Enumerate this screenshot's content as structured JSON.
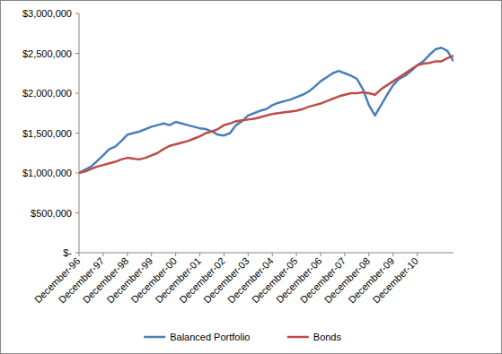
{
  "chart_data": {
    "type": "line",
    "categories": [
      "December-96",
      null,
      null,
      null,
      "December-97",
      null,
      null,
      null,
      "December-98",
      null,
      null,
      null,
      "December-99",
      null,
      null,
      null,
      "December-00",
      null,
      null,
      null,
      "December-01",
      null,
      null,
      null,
      "December-02",
      null,
      null,
      null,
      "December-03",
      null,
      null,
      null,
      "December-04",
      null,
      null,
      null,
      "December-05",
      null,
      null,
      null,
      "December-06",
      null,
      null,
      null,
      "December-07",
      null,
      null,
      null,
      "December-08",
      null,
      null,
      null,
      "December-09",
      null,
      null,
      null,
      "December-10",
      null,
      null,
      null,
      null,
      null,
      null
    ],
    "series": [
      {
        "name": "Balanced Portfolio",
        "color": "#4a7ebb",
        "values": [
          1000000,
          1040000,
          1080000,
          1150000,
          1220000,
          1300000,
          1330000,
          1400000,
          1480000,
          1500000,
          1520000,
          1550000,
          1580000,
          1600000,
          1620000,
          1600000,
          1640000,
          1620000,
          1600000,
          1580000,
          1560000,
          1550000,
          1520000,
          1480000,
          1470000,
          1500000,
          1600000,
          1650000,
          1720000,
          1750000,
          1780000,
          1800000,
          1850000,
          1880000,
          1900000,
          1920000,
          1950000,
          1980000,
          2020000,
          2080000,
          2150000,
          2200000,
          2250000,
          2280000,
          2250000,
          2220000,
          2180000,
          2050000,
          1850000,
          1720000,
          1850000,
          1980000,
          2100000,
          2180000,
          2220000,
          2280000,
          2350000,
          2400000,
          2480000,
          2550000,
          2570000,
          2530000,
          2400000
        ]
      },
      {
        "name": "Bonds",
        "color": "#be4b48",
        "values": [
          1000000,
          1020000,
          1050000,
          1080000,
          1100000,
          1120000,
          1140000,
          1170000,
          1190000,
          1180000,
          1170000,
          1190000,
          1220000,
          1250000,
          1300000,
          1340000,
          1360000,
          1380000,
          1400000,
          1430000,
          1460000,
          1500000,
          1520000,
          1550000,
          1600000,
          1620000,
          1650000,
          1660000,
          1670000,
          1680000,
          1700000,
          1720000,
          1740000,
          1750000,
          1760000,
          1770000,
          1780000,
          1800000,
          1830000,
          1850000,
          1870000,
          1900000,
          1930000,
          1960000,
          1980000,
          2000000,
          2000000,
          2010000,
          2000000,
          1980000,
          2050000,
          2100000,
          2150000,
          2200000,
          2250000,
          2300000,
          2350000,
          2370000,
          2380000,
          2400000,
          2400000,
          2440000,
          2470000
        ]
      }
    ],
    "ylim": [
      0,
      3000000
    ],
    "yticks": [
      {
        "value": 0,
        "label": "$-"
      },
      {
        "value": 500000,
        "label": "$500,000"
      },
      {
        "value": 1000000,
        "label": "$1,000,000"
      },
      {
        "value": 1500000,
        "label": "$1,500,000"
      },
      {
        "value": 2000000,
        "label": "$2,000,000"
      },
      {
        "value": 2500000,
        "label": "$2,500,000"
      },
      {
        "value": 3000000,
        "label": "$3,000,000"
      }
    ],
    "grid": false,
    "legend": "bottom"
  }
}
